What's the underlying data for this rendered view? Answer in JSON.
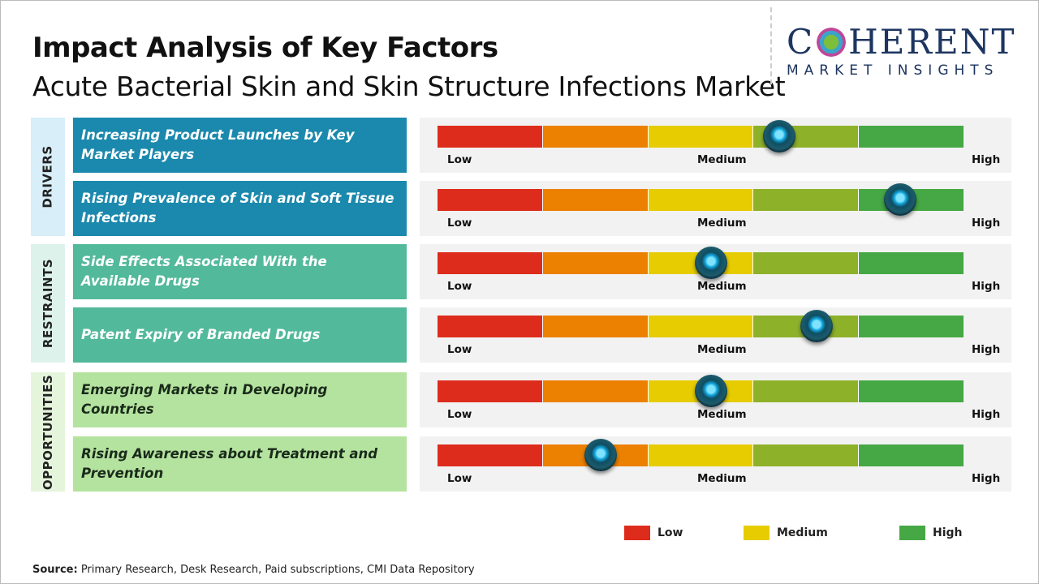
{
  "header": {
    "title": "Impact Analysis of Key Factors",
    "subtitle": "Acute Bacterial Skin and Skin Structure Infections Market"
  },
  "logo": {
    "text_main": "COHERENT",
    "text_sub": "MARKET INSIGHTS"
  },
  "scale_colors": [
    "#de2c1c",
    "#ec8000",
    "#e6cc00",
    "#8eb12a",
    "#45a844"
  ],
  "scale_labels": {
    "low": "Low",
    "medium": "Medium",
    "high": "High"
  },
  "categories": [
    {
      "label": "DRIVERS",
      "bg": "#d8eef8",
      "box": "#1b89ad"
    },
    {
      "label": "RESTRAINTS",
      "bg": "#def2ec",
      "box": "#52b99a"
    },
    {
      "label": "OPPORTUNITIES",
      "bg": "#e5f5dc",
      "box": "#b4e39f"
    }
  ],
  "factors": [
    {
      "category": "DRIVERS",
      "label": "Increasing Product Launches by Key Market Players",
      "impact_percent": 65
    },
    {
      "category": "DRIVERS",
      "label": "Rising Prevalence of Skin and Soft Tissue Infections",
      "impact_percent": 88
    },
    {
      "category": "RESTRAINTS",
      "label": "Side Effects Associated With the Available Drugs",
      "impact_percent": 52
    },
    {
      "category": "RESTRAINTS",
      "label": "Patent Expiry of Branded Drugs",
      "impact_percent": 72
    },
    {
      "category": "OPPORTUNITIES",
      "label": "Emerging Markets in Developing Countries",
      "impact_percent": 52
    },
    {
      "category": "OPPORTUNITIES",
      "label": "Rising Awareness about Treatment and Prevention",
      "impact_percent": 31
    }
  ],
  "legend": [
    {
      "label": "Low",
      "color": "#de2c1c"
    },
    {
      "label": "Medium",
      "color": "#e6cc00"
    },
    {
      "label": "High",
      "color": "#45a844"
    }
  ],
  "source": {
    "prefix": "Source:",
    "text": " Primary Research, Desk Research, Paid subscriptions, CMI Data Repository"
  }
}
